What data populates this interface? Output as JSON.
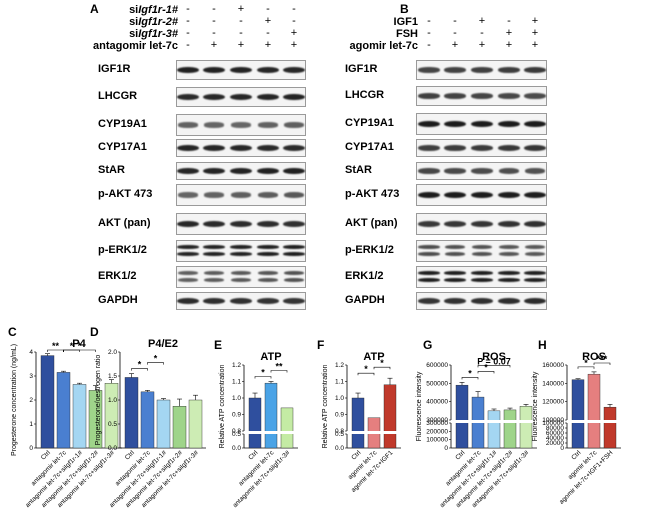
{
  "panelA": {
    "letter": "A",
    "conditions": [
      {
        "prefix": "si",
        "gene": "Igf1r-1#",
        "signs": [
          "-",
          "-",
          "+",
          "-",
          "-"
        ]
      },
      {
        "prefix": "si",
        "gene": "Igf1r-2#",
        "signs": [
          "-",
          "-",
          "-",
          "+",
          "-"
        ]
      },
      {
        "prefix": "si",
        "gene": "Igf1r-3#",
        "signs": [
          "-",
          "-",
          "-",
          "-",
          "+"
        ]
      },
      {
        "prefix": "",
        "gene": "antagomir let-7c",
        "signs": [
          "-",
          "+",
          "+",
          "+",
          "+"
        ]
      }
    ],
    "proteins": [
      "IGF1R",
      "LHCGR",
      "CYP19A1",
      "CYP17A1",
      "StAR",
      "p-AKT 473",
      "AKT (pan)",
      "p-ERK1/2",
      "ERK1/2",
      "GAPDH"
    ]
  },
  "panelB": {
    "letter": "B",
    "conditions": [
      {
        "label": "IGF1",
        "signs": [
          "-",
          "-",
          "+",
          "-",
          "+"
        ]
      },
      {
        "label": "FSH",
        "signs": [
          "-",
          "-",
          "-",
          "+",
          "+"
        ]
      },
      {
        "label": "agomir let-7c",
        "signs": [
          "-",
          "+",
          "+",
          "+",
          "+"
        ]
      }
    ],
    "proteins": [
      "IGF1R",
      "LHCGR",
      "CYP19A1",
      "CYP17A1",
      "StAR",
      "p-AKT 473",
      "AKT (pan)",
      "p-ERK1/2",
      "ERK1/2",
      "GAPDH"
    ]
  },
  "chart_data": [
    {
      "panel": "C",
      "type": "bar",
      "title": "P4",
      "ylabel": "Progesterone concentration (ng/mL)",
      "ylim": [
        0,
        4
      ],
      "yticks": [
        0,
        1,
        2,
        3,
        4
      ],
      "categories": [
        "Ctrl",
        "antagomir let-7c",
        "antagomir let-7c+siIgf1r-1#",
        "antagomir let-7c+siIgf1r-2#",
        "antagomir let-7c+siIgf1r-3#"
      ],
      "values": [
        3.85,
        3.15,
        2.65,
        2.4,
        2.7
      ],
      "errors": [
        0.08,
        0.05,
        0.05,
        0.2,
        0.15
      ],
      "colors": [
        "#2f4f9e",
        "#4a7fd0",
        "#a4d6f2",
        "#9fd48a",
        "#cdecb4"
      ],
      "significance": [
        [
          "**",
          0,
          1
        ],
        [
          "*",
          1,
          2
        ],
        [
          "*",
          1,
          3
        ]
      ]
    },
    {
      "panel": "D",
      "type": "bar",
      "title": "P4/E2",
      "ylabel": "Progesterone/oestrogen ratio",
      "ylim": [
        0,
        2.0
      ],
      "yticks": [
        0,
        0.5,
        1.0,
        1.5,
        2.0
      ],
      "categories": [
        "Ctrl",
        "antagomir let-7c",
        "antagomir let-7c+siIgf1r-1#",
        "antagomir let-7c+siIgf1r-2#",
        "antagomir let-7c+siIgf1r-3#"
      ],
      "values": [
        1.47,
        1.17,
        1.0,
        0.87,
        1.0
      ],
      "errors": [
        0.08,
        0.03,
        0.03,
        0.15,
        0.1
      ],
      "colors": [
        "#2f4f9e",
        "#4a7fd0",
        "#a4d6f2",
        "#9fd48a",
        "#cdecb4"
      ],
      "significance": [
        [
          "*",
          0,
          1
        ],
        [
          "*",
          1,
          2
        ]
      ]
    },
    {
      "panel": "E",
      "type": "bar",
      "title": "ATP",
      "ylabel": "Relative ATP concentration",
      "ylim": [
        0,
        1.2
      ],
      "yticks": [
        0.0,
        0.5,
        0.8,
        0.9,
        1.0,
        1.1,
        1.2
      ],
      "categories": [
        "Ctrl",
        "antagomir let-7c",
        "antagomir let-7c+siIgf1r-3#"
      ],
      "values": [
        1.0,
        1.09,
        0.94
      ],
      "errors": [
        0.03,
        0.01,
        0.0
      ],
      "colors": [
        "#2f4f9e",
        "#4aa3e6",
        "#c4eba4"
      ],
      "significance": [
        [
          "*",
          0,
          1
        ],
        [
          "**",
          1,
          2
        ]
      ]
    },
    {
      "panel": "F",
      "type": "bar",
      "title": "ATP",
      "ylabel": "Relative ATP concentration",
      "ylim": [
        0,
        1.2
      ],
      "yticks": [
        0.0,
        0.5,
        0.8,
        0.9,
        1.0,
        1.1,
        1.2
      ],
      "categories": [
        "Ctrl",
        "agomir let-7c",
        "agomir let-7c+IGF1"
      ],
      "values": [
        1.0,
        0.88,
        1.08
      ],
      "errors": [
        0.03,
        0.0,
        0.04
      ],
      "colors": [
        "#2f4f9e",
        "#e57f7f",
        "#c0392b"
      ],
      "significance": [
        [
          "*",
          0,
          1
        ],
        [
          "*",
          1,
          2
        ]
      ]
    },
    {
      "panel": "G",
      "type": "bar",
      "title": "ROS",
      "ylabel": "Fluorescence intensity",
      "ylim": [
        0,
        600000
      ],
      "yticks": [
        0,
        100000,
        200000,
        300000,
        400000,
        500000,
        600000
      ],
      "categories": [
        "Ctrl",
        "antagomir let-7c",
        "antagomir let-7c+siIgf1r-1#",
        "antagomir let-7c+siIgf1r-2#",
        "antagomir let-7c+siIgf1r-3#"
      ],
      "values": [
        490000,
        425000,
        350000,
        355000,
        375000
      ],
      "errors": [
        15000,
        30000,
        10000,
        10000,
        10000
      ],
      "colors": [
        "#2f4f9e",
        "#4a7fd0",
        "#a4d6f2",
        "#9fd48a",
        "#cdecb4"
      ],
      "significance": [
        [
          "*",
          0,
          1
        ],
        [
          "*",
          1,
          2
        ],
        [
          "P = 0.07",
          1,
          3
        ]
      ]
    },
    {
      "panel": "H",
      "type": "bar",
      "title": "ROS",
      "ylabel": "Fluorescence intensity",
      "ylim": [
        0,
        160000
      ],
      "yticks": [
        0,
        20000,
        40000,
        60000,
        80000,
        100000,
        120000,
        140000,
        160000
      ],
      "categories": [
        "Ctrl",
        "agomir let-7c",
        "agomir let-7c+IGF1+FSH"
      ],
      "values": [
        144000,
        150000,
        114000
      ],
      "errors": [
        1000,
        2500,
        3000
      ],
      "colors": [
        "#2f4f9e",
        "#e57f7f",
        "#c0392b"
      ],
      "significance": [
        [
          "*",
          0,
          1
        ],
        [
          "***",
          1,
          2
        ]
      ]
    }
  ]
}
